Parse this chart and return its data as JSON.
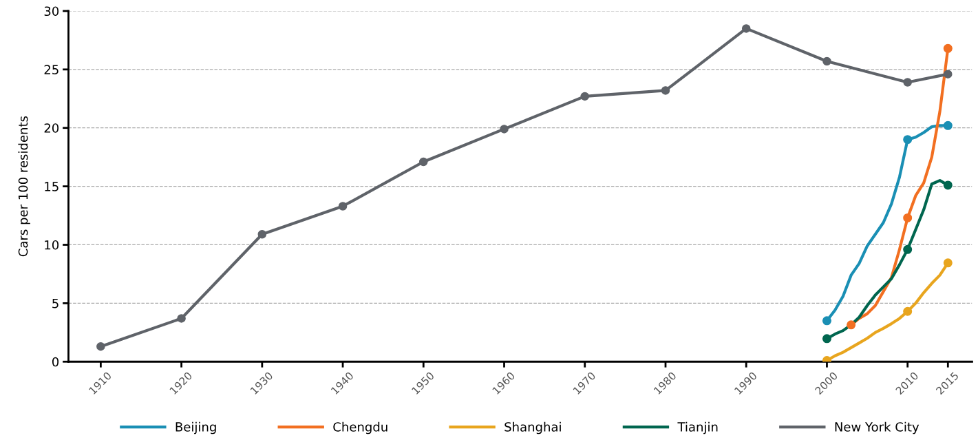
{
  "chart_data": {
    "type": "line",
    "ylabel": "Cars per 100 residents",
    "xlim": [
      1906,
      2018
    ],
    "xticks": [
      1910,
      1920,
      1930,
      1940,
      1950,
      1960,
      1970,
      1980,
      1990,
      2000,
      2010,
      2015
    ],
    "ylim": [
      0,
      30
    ],
    "yticks": [
      0,
      5,
      10,
      15,
      20,
      25,
      30
    ],
    "grid": "y",
    "legend": "bottom",
    "line_style": "solid",
    "series": [
      {
        "name": "Beijing",
        "color": "#1a8fb4",
        "marker": "none",
        "x": [
          2000,
          2001,
          2002,
          2003,
          2004,
          2005,
          2006,
          2007,
          2008,
          2009,
          2010,
          2011,
          2012,
          2013,
          2014,
          2015
        ],
        "values": [
          3.5,
          4.4,
          5.6,
          7.4,
          8.4,
          9.9,
          10.9,
          11.9,
          13.5,
          15.8,
          19.0,
          19.2,
          19.6,
          20.1,
          20.2,
          20.2
        ]
      },
      {
        "color": "#1a8fb4",
        "type": "scatter",
        "marker": "circle",
        "x": [
          2000,
          2010,
          2015
        ],
        "values": [
          3.5,
          19.0,
          20.2
        ]
      },
      {
        "name": "Chengdu",
        "color": "#f26f21",
        "marker": "none",
        "x": [
          2003,
          2004,
          2005,
          2006,
          2007,
          2008,
          2009,
          2010,
          2011,
          2012,
          2013,
          2014,
          2015
        ],
        "values": [
          3.15,
          3.7,
          4.1,
          4.8,
          6.0,
          7.2,
          9.6,
          12.3,
          14.2,
          15.3,
          17.5,
          21.4,
          26.8
        ]
      },
      {
        "color": "#f26f21",
        "type": "scatter",
        "marker": "circle",
        "x": [
          2003,
          2010,
          2015
        ],
        "values": [
          3.15,
          12.3,
          26.8
        ]
      },
      {
        "name": "Shanghai",
        "color": "#e8a51e",
        "marker": "none",
        "x": [
          2000,
          2001,
          2002,
          2003,
          2004,
          2005,
          2006,
          2007,
          2008,
          2009,
          2010,
          2011,
          2012,
          2013,
          2014,
          2015
        ],
        "values": [
          0.1,
          0.5,
          0.8,
          1.2,
          1.6,
          2.0,
          2.5,
          2.85,
          3.25,
          3.7,
          4.3,
          5.0,
          5.9,
          6.7,
          7.4,
          8.45
        ]
      },
      {
        "color": "#e8a51e",
        "type": "scatter",
        "marker": "circle",
        "x": [
          2000,
          2010,
          2015
        ],
        "values": [
          0.1,
          4.3,
          8.45
        ]
      },
      {
        "name": "Tianjin",
        "color": "#00664f",
        "marker": "none",
        "x": [
          2000,
          2001,
          2002,
          2003,
          2004,
          2005,
          2006,
          2007,
          2008,
          2009,
          2010,
          2011,
          2012,
          2013,
          2014,
          2015
        ],
        "values": [
          1.97,
          2.36,
          2.66,
          3.15,
          3.8,
          4.8,
          5.7,
          6.4,
          7.1,
          8.3,
          9.6,
          11.3,
          13.0,
          15.2,
          15.5,
          15.1
        ]
      },
      {
        "color": "#00664f",
        "type": "scatter",
        "marker": "circle",
        "x": [
          2000,
          2010,
          2015
        ],
        "values": [
          1.97,
          9.6,
          15.1
        ]
      },
      {
        "name": "New York City",
        "color": "#5f6369",
        "marker": "circle",
        "x": [
          1910,
          1920,
          1930,
          1940,
          1950,
          1960,
          1970,
          1980,
          1990,
          2000,
          2010,
          2015
        ],
        "values": [
          1.3,
          3.7,
          10.9,
          13.3,
          17.1,
          19.9,
          22.7,
          23.2,
          28.5,
          25.7,
          23.9,
          24.6
        ]
      }
    ]
  }
}
